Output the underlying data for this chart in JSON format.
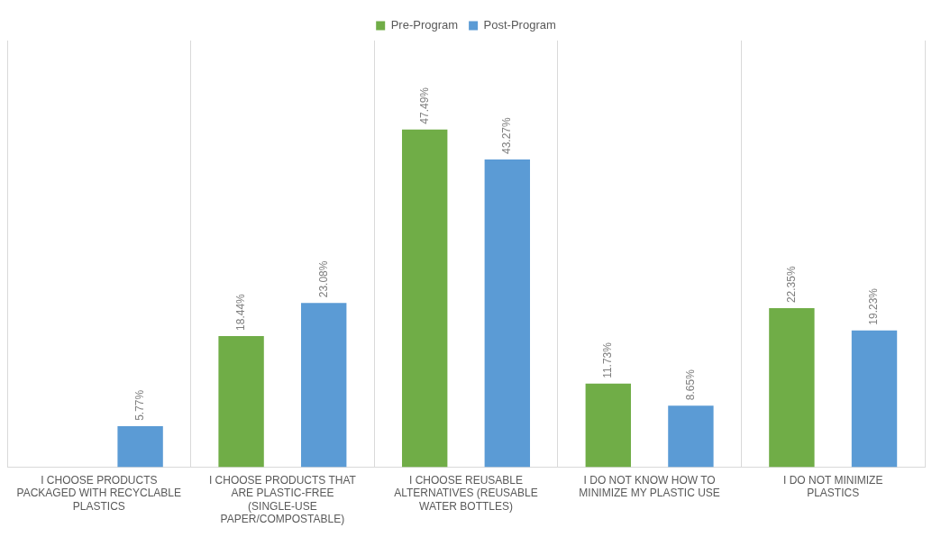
{
  "chart_data": {
    "type": "bar",
    "categories": [
      "I CHOOSE PRODUCTS PACKAGED WITH RECYCLABLE PLASTICS",
      "I CHOOSE PRODUCTS THAT ARE PLASTIC-FREE (SINGLE-USE PAPER/COMPOSTABLE)",
      "I CHOOSE REUSABLE ALTERNATIVES (REUSABLE WATER BOTTLES)",
      "I DO NOT KNOW HOW TO MINIMIZE MY PLASTIC USE",
      "I DO NOT MINIMIZE PLASTICS"
    ],
    "series": [
      {
        "name": "Pre-Program",
        "color": "#70ad47",
        "values": [
          null,
          18.44,
          47.49,
          11.73,
          22.35
        ],
        "value_labels": [
          null,
          "18.44%",
          "47.49%",
          "11.73%",
          "22.35%"
        ]
      },
      {
        "name": "Post-Program",
        "color": "#5b9bd5",
        "values": [
          5.77,
          23.08,
          43.27,
          8.65,
          19.23
        ],
        "value_labels": [
          "5.77%",
          "23.08%",
          "43.27%",
          "8.65%",
          "19.23%"
        ]
      }
    ],
    "legend": "top",
    "grid": "x",
    "tick_labels": "x"
  }
}
